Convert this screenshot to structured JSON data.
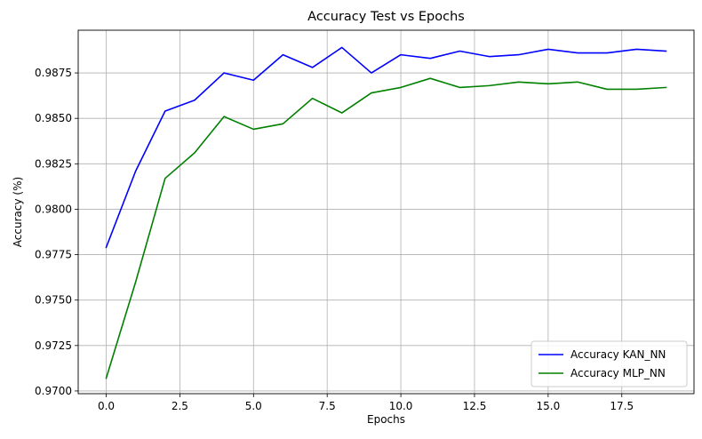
{
  "chart_data": {
    "type": "line",
    "title": "Accuracy Test vs Epochs",
    "xlabel": "Epochs",
    "ylabel": "Accuracy (%)",
    "xlim": [
      -0.95,
      19.95
    ],
    "ylim": [
      0.96985,
      0.98985
    ],
    "x_ticks": [
      0,
      2.5,
      5,
      7.5,
      10,
      12.5,
      15,
      17.5
    ],
    "x_tick_labels": [
      "0.0",
      "2.5",
      "5.0",
      "7.5",
      "10.0",
      "12.5",
      "15.0",
      "17.5"
    ],
    "y_ticks": [
      0.97,
      0.9725,
      0.975,
      0.9775,
      0.98,
      0.9825,
      0.985,
      0.9875
    ],
    "y_tick_labels": [
      "0.9700",
      "0.9725",
      "0.9750",
      "0.9775",
      "0.9800",
      "0.9825",
      "0.9850",
      "0.9875"
    ],
    "grid": true,
    "legend_position": "lower-right",
    "x": [
      0,
      1,
      2,
      3,
      4,
      5,
      6,
      7,
      8,
      9,
      10,
      11,
      12,
      13,
      14,
      15,
      16,
      17,
      18,
      19
    ],
    "series": [
      {
        "name": "Accuracy KAN_NN",
        "color": "#0000ff",
        "values": [
          0.9779,
          0.9821,
          0.9854,
          0.986,
          0.9875,
          0.9871,
          0.9885,
          0.9878,
          0.9889,
          0.9875,
          0.9885,
          0.9883,
          0.9887,
          0.9884,
          0.9885,
          0.9888,
          0.9886,
          0.9886,
          0.9888,
          0.9887
        ]
      },
      {
        "name": "Accuracy MLP_NN",
        "color": "#008000",
        "values": [
          0.9707,
          0.976,
          0.9817,
          0.9831,
          0.9851,
          0.9844,
          0.9847,
          0.9861,
          0.9853,
          0.9864,
          0.9867,
          0.9872,
          0.9867,
          0.9868,
          0.987,
          0.9869,
          0.987,
          0.9866,
          0.9866,
          0.9867
        ]
      }
    ]
  }
}
